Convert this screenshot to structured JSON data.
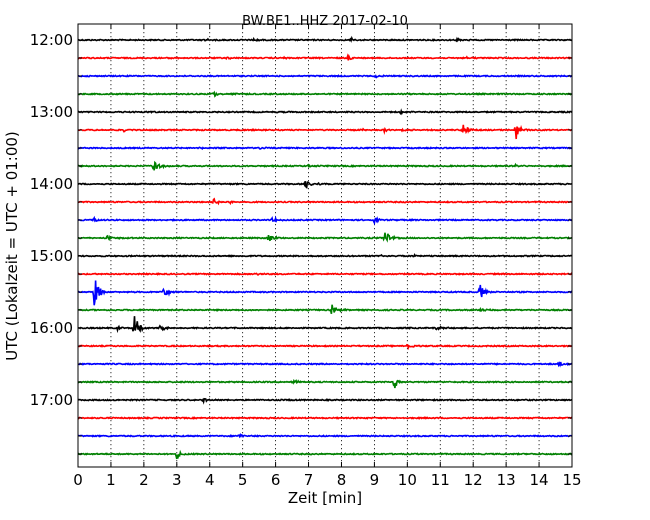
{
  "chart_data": {
    "type": "line",
    "title": "BW.BE1..HHZ 2017-02-10",
    "xlabel": "Zeit  [min]",
    "ylabel": "UTC (Lokalzeit = UTC + 01:00)",
    "xlim": [
      0,
      15
    ],
    "x_ticks": [
      "0",
      "1",
      "2",
      "3",
      "4",
      "5",
      "6",
      "7",
      "8",
      "9",
      "10",
      "11",
      "12",
      "13",
      "14",
      "15"
    ],
    "grid": "vertical dotted at every minute",
    "row_interval_minutes": 15,
    "y_tick_labels": [
      "12:00",
      "13:00",
      "14:00",
      "15:00",
      "16:00",
      "17:00"
    ],
    "trace_colors": [
      "#000000",
      "#ff0000",
      "#0000ff",
      "#008000"
    ],
    "series": [
      {
        "start": "12:00",
        "events": [
          {
            "t": 3.8,
            "amp": 0.25
          },
          {
            "t": 5.3,
            "amp": 0.2
          },
          {
            "t": 8.3,
            "amp": 0.2
          },
          {
            "t": 11.5,
            "amp": 0.2
          }
        ]
      },
      {
        "start": "12:15",
        "events": [
          {
            "t": 2.8,
            "amp": 0.18
          },
          {
            "t": 4.5,
            "amp": 0.15
          },
          {
            "t": 6.2,
            "amp": 0.12
          },
          {
            "t": 8.2,
            "amp": 0.3
          },
          {
            "t": 11.8,
            "amp": 0.18
          }
        ]
      },
      {
        "start": "12:30",
        "events": [
          {
            "t": 9.0,
            "amp": 0.2
          }
        ]
      },
      {
        "start": "12:45",
        "events": [
          {
            "t": 4.1,
            "amp": 0.55
          },
          {
            "t": 4.8,
            "amp": 0.15
          }
        ]
      },
      {
        "start": "13:00",
        "events": [
          {
            "t": 2.2,
            "amp": 0.15
          },
          {
            "t": 9.8,
            "amp": 0.15
          }
        ]
      },
      {
        "start": "13:15",
        "events": [
          {
            "t": 1.4,
            "amp": 0.2
          },
          {
            "t": 8.6,
            "amp": 0.15
          },
          {
            "t": 9.3,
            "amp": 0.2
          },
          {
            "t": 9.8,
            "amp": 0.2
          },
          {
            "t": 11.7,
            "amp": 0.9
          },
          {
            "t": 13.3,
            "amp": 1.3
          }
        ]
      },
      {
        "start": "13:30",
        "events": [
          {
            "t": 3.7,
            "amp": 0.15
          },
          {
            "t": 5.5,
            "amp": 0.15
          }
        ]
      },
      {
        "start": "13:45",
        "events": [
          {
            "t": 2.3,
            "amp": 0.9
          },
          {
            "t": 7.0,
            "amp": 0.15
          },
          {
            "t": 13.3,
            "amp": 0.2
          }
        ]
      },
      {
        "start": "14:00",
        "events": [
          {
            "t": 6.9,
            "amp": 0.5
          },
          {
            "t": 7.3,
            "amp": 0.2
          }
        ]
      },
      {
        "start": "14:15",
        "events": [
          {
            "t": 4.1,
            "amp": 0.6
          },
          {
            "t": 4.6,
            "amp": 0.2
          }
        ]
      },
      {
        "start": "14:30",
        "events": [
          {
            "t": 0.5,
            "amp": 0.3
          },
          {
            "t": 5.9,
            "amp": 0.3
          },
          {
            "t": 9.0,
            "amp": 0.3
          }
        ]
      },
      {
        "start": "14:45",
        "events": [
          {
            "t": 0.9,
            "amp": 0.3
          },
          {
            "t": 5.8,
            "amp": 0.6
          },
          {
            "t": 9.3,
            "amp": 1.2
          }
        ]
      },
      {
        "start": "15:00",
        "events": [
          {
            "t": 9.2,
            "amp": 0.2
          },
          {
            "t": 10.2,
            "amp": 0.15
          }
        ]
      },
      {
        "start": "15:15",
        "events": [
          {
            "t": 5.4,
            "amp": 0.12
          }
        ]
      },
      {
        "start": "15:30",
        "events": [
          {
            "t": 0.5,
            "amp": 1.8
          },
          {
            "t": 2.6,
            "amp": 0.8
          },
          {
            "t": 12.2,
            "amp": 1.0
          }
        ]
      },
      {
        "start": "15:45",
        "events": [
          {
            "t": 7.7,
            "amp": 0.7
          },
          {
            "t": 12.2,
            "amp": 0.3
          }
        ]
      },
      {
        "start": "16:00",
        "events": [
          {
            "t": 1.2,
            "amp": 0.2
          },
          {
            "t": 1.7,
            "amp": 1.6
          },
          {
            "t": 2.5,
            "amp": 0.4
          },
          {
            "t": 10.9,
            "amp": 0.25
          }
        ]
      },
      {
        "start": "16:15",
        "events": [
          {
            "t": 10.0,
            "amp": 0.4
          }
        ]
      },
      {
        "start": "16:30",
        "events": [
          {
            "t": 14.6,
            "amp": 0.3
          }
        ]
      },
      {
        "start": "16:45",
        "events": [
          {
            "t": 6.5,
            "amp": 0.3
          },
          {
            "t": 9.6,
            "amp": 0.8
          }
        ]
      },
      {
        "start": "17:00",
        "events": [
          {
            "t": 3.8,
            "amp": 0.3
          },
          {
            "t": 6.2,
            "amp": 0.12
          }
        ]
      },
      {
        "start": "17:15",
        "events": []
      },
      {
        "start": "17:30",
        "events": [
          {
            "t": 4.9,
            "amp": 0.2
          }
        ]
      },
      {
        "start": "17:45",
        "events": [
          {
            "t": 3.0,
            "amp": 0.5
          }
        ]
      }
    ]
  }
}
